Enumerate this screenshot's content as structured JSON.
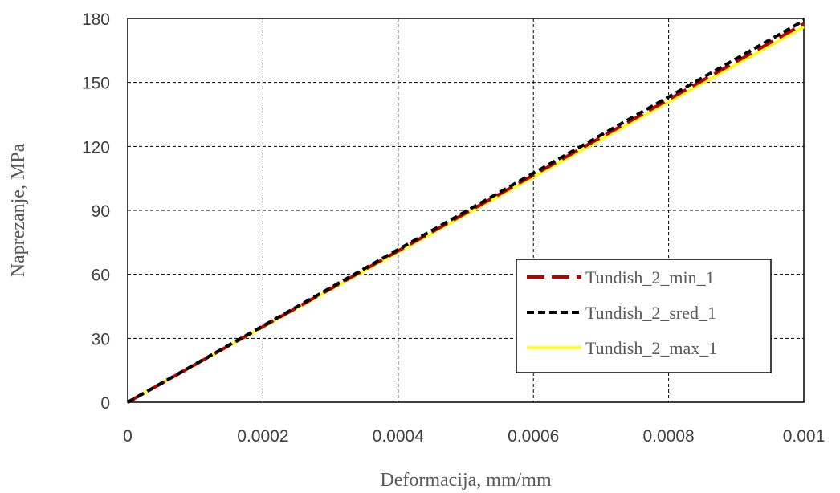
{
  "chart_data": {
    "type": "line",
    "title": "",
    "xlabel": "Deformacija, mm/mm",
    "ylabel": "Naprezanje, MPa",
    "xlim": [
      0,
      0.001
    ],
    "ylim": [
      0,
      180
    ],
    "x_ticks": [
      0,
      0.0002,
      0.0004,
      0.0006,
      0.0008,
      0.001
    ],
    "x_tick_labels": [
      "0",
      "0.0002",
      "0.0004",
      "0.0006",
      "0.0008",
      "0.001"
    ],
    "y_ticks": [
      0,
      30,
      60,
      90,
      120,
      150,
      180
    ],
    "y_tick_labels": [
      "0",
      "30",
      "60",
      "90",
      "120",
      "150",
      "180"
    ],
    "grid": true,
    "legend_position": "bottom-right",
    "series": [
      {
        "name": "Tundish_2_min_1",
        "color": "#c00000",
        "style": "long-dash",
        "x": [
          0,
          0.0002,
          0.0004,
          0.0006,
          0.0008,
          0.001
        ],
        "y": [
          0,
          35.5,
          71.0,
          106.5,
          142.0,
          177.5
        ]
      },
      {
        "name": "Tundish_2_sred_1",
        "color": "#000000",
        "style": "short-dash",
        "x": [
          0,
          0.0002,
          0.0004,
          0.0006,
          0.0008,
          0.001
        ],
        "y": [
          0,
          35.8,
          71.6,
          107.4,
          143.2,
          179.0
        ]
      },
      {
        "name": "Tundish_2_max_1",
        "color": "#ffff00",
        "style": "solid",
        "x": [
          0,
          0.0002,
          0.0004,
          0.0006,
          0.0008,
          0.001
        ],
        "y": [
          0,
          35.2,
          70.4,
          105.6,
          140.8,
          176.0
        ]
      }
    ]
  }
}
